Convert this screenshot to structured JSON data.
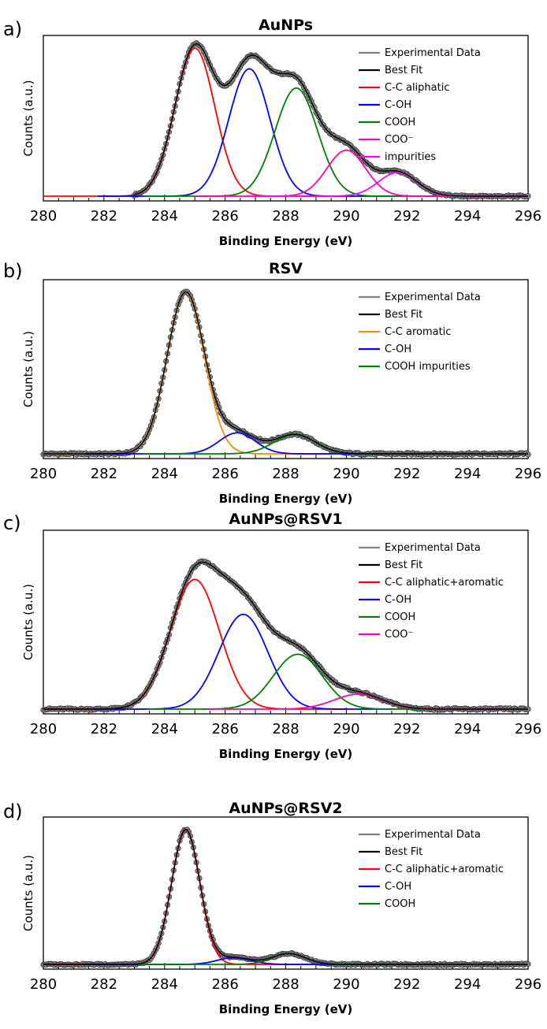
{
  "chart_data": [
    {
      "type": "line",
      "panel_label": "a)",
      "title": "AuNPs",
      "xlabel": "Binding Energy (eV)",
      "ylabel": "Counts (a.u.)",
      "xlim": [
        280,
        296
      ],
      "x_ticks": [
        "280",
        "282",
        "284",
        "286",
        "288",
        "290",
        "292",
        "294",
        "296"
      ],
      "y_ticks_shown": false,
      "legend_position": "top-right",
      "experimental_range": [
        283.0,
        296.0
      ],
      "series": [
        {
          "name": "Experimental Data",
          "kind": "experimental",
          "color": "#808080"
        },
        {
          "name": "Best Fit",
          "kind": "sum",
          "color": "#000000"
        },
        {
          "name": "C-C aliphatic",
          "kind": "peak",
          "color": "#ff0000",
          "center": 285.0,
          "height": 1.0,
          "fwhm": 1.55
        },
        {
          "name": "C-OH",
          "kind": "peak",
          "color": "#0000ff",
          "center": 286.8,
          "height": 0.86,
          "fwhm": 1.6
        },
        {
          "name": "COOH",
          "kind": "peak",
          "color": "#008000",
          "center": 288.35,
          "height": 0.73,
          "fwhm": 1.65
        },
        {
          "name": "COO⁻",
          "kind": "peak",
          "color": "#ff00b4",
          "center": 290.0,
          "height": 0.31,
          "fwhm": 1.5
        },
        {
          "name": "impurities",
          "kind": "peak",
          "color": "#ff00ff",
          "center": 291.7,
          "height": 0.16,
          "fwhm": 1.5
        }
      ]
    },
    {
      "type": "line",
      "panel_label": "b)",
      "title": "RSV",
      "xlabel": "Binding Energy (eV)",
      "ylabel": "Counts (a.u.)",
      "xlim": [
        280,
        296
      ],
      "x_ticks": [
        "280",
        "282",
        "284",
        "286",
        "288",
        "290",
        "292",
        "294",
        "296"
      ],
      "y_ticks_shown": false,
      "legend_position": "top-right",
      "experimental_range": [
        280.0,
        296.0
      ],
      "series": [
        {
          "name": "Experimental Data",
          "kind": "experimental",
          "color": "#808080"
        },
        {
          "name": "Best Fit",
          "kind": "sum",
          "color": "#000000"
        },
        {
          "name": "C-C aromatic",
          "kind": "peak",
          "color": "#ff8c00",
          "center": 284.7,
          "height": 1.0,
          "fwhm": 1.45
        },
        {
          "name": "C-OH",
          "kind": "peak",
          "color": "#0000ff",
          "center": 286.4,
          "height": 0.13,
          "fwhm": 1.4
        },
        {
          "name": "COOH impurities",
          "kind": "peak",
          "color": "#008000",
          "center": 288.3,
          "height": 0.12,
          "fwhm": 1.6
        }
      ]
    },
    {
      "type": "line",
      "panel_label": "c)",
      "title": "AuNPs@RSV1",
      "xlabel": "Binding Energy (eV)",
      "ylabel": "Counts (a.u.)",
      "xlim": [
        280,
        296
      ],
      "x_ticks": [
        "280",
        "282",
        "284",
        "286",
        "288",
        "290",
        "292",
        "294",
        "296"
      ],
      "y_ticks_shown": false,
      "legend_position": "top-right",
      "experimental_range": [
        280.0,
        296.0
      ],
      "series": [
        {
          "name": "Experimental Data",
          "kind": "experimental",
          "color": "#808080"
        },
        {
          "name": "Best Fit",
          "kind": "sum",
          "color": "#000000"
        },
        {
          "name": "C-C aliphatic+aromatic",
          "kind": "peak",
          "color": "#ff0000",
          "center": 285.0,
          "height": 0.78,
          "fwhm": 1.9
        },
        {
          "name": "C-OH",
          "kind": "peak",
          "color": "#0000ff",
          "center": 286.6,
          "height": 0.57,
          "fwhm": 1.9
        },
        {
          "name": "COOH",
          "kind": "peak",
          "color": "#008000",
          "center": 288.4,
          "height": 0.33,
          "fwhm": 1.9
        },
        {
          "name": "COO⁻",
          "kind": "peak",
          "color": "#ff00b4",
          "center": 290.4,
          "height": 0.09,
          "fwhm": 1.9
        }
      ]
    },
    {
      "type": "line",
      "panel_label": "d)",
      "title": "AuNPs@RSV2",
      "xlabel": "Binding Energy (eV)",
      "ylabel": "Counts (a.u.)",
      "xlim": [
        280,
        296
      ],
      "x_ticks": [
        "280",
        "282",
        "284",
        "286",
        "288",
        "290",
        "292",
        "294",
        "296"
      ],
      "y_ticks_shown": false,
      "legend_position": "top-right",
      "experimental_range": [
        280.0,
        296.0
      ],
      "series": [
        {
          "name": "Experimental Data",
          "kind": "experimental",
          "color": "#808080"
        },
        {
          "name": "Best Fit",
          "kind": "sum",
          "color": "#000000"
        },
        {
          "name": "C-C aliphatic+aromatic",
          "kind": "peak",
          "color": "#ff0000",
          "center": 284.7,
          "height": 1.0,
          "fwhm": 1.1
        },
        {
          "name": "C-OH",
          "kind": "peak",
          "color": "#0000ff",
          "center": 286.3,
          "height": 0.05,
          "fwhm": 1.3
        },
        {
          "name": "COOH",
          "kind": "peak",
          "color": "#008000",
          "center": 288.1,
          "height": 0.08,
          "fwhm": 1.3
        }
      ]
    }
  ]
}
